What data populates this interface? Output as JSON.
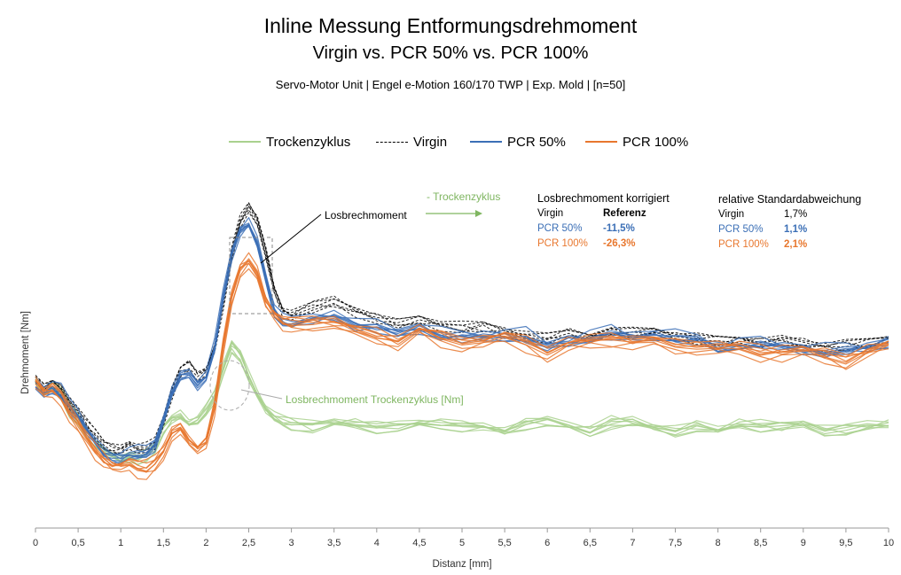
{
  "titles": {
    "title1": "Inline Messung Entformungsdrehmoment",
    "title2": "Virgin vs. PCR 50% vs. PCR 100%",
    "subtitle": "Servo-Motor Unit | Engel e-Motion 160/170 TWP | Exp. Mold | [n=50]"
  },
  "legend": [
    {
      "name": "Trockenzyklus",
      "color": "#a9d18e",
      "style": "solid"
    },
    {
      "name": "Virgin",
      "color": "#000000",
      "style": "dashed"
    },
    {
      "name": "PCR 50%",
      "color": "#3b6fb6",
      "style": "solid"
    },
    {
      "name": "PCR 100%",
      "color": "#e8772e",
      "style": "solid"
    }
  ],
  "annotations": {
    "losbrech": "Losbrechmoment",
    "losbrech_trocken": "Losbrechmoment Trockenzyklus [Nm]",
    "minus_trocken": "- Trockenzyklus"
  },
  "table1": {
    "header": "Losbrechmoment korrigiert",
    "rows": [
      {
        "label": "Virgin",
        "value": "Referenz"
      },
      {
        "label": "PCR 50%",
        "value": "-11,5%"
      },
      {
        "label": "PCR 100%",
        "value": "-26,3%"
      }
    ]
  },
  "table2": {
    "header": "relative Standardabweichung",
    "rows": [
      {
        "label": "Virgin",
        "value": "1,7%"
      },
      {
        "label": "PCR 50%",
        "value": "1,1%"
      },
      {
        "label": "PCR 100%",
        "value": "2,1%"
      }
    ]
  },
  "chart_data": {
    "type": "line",
    "xlabel": "Distanz [mm]",
    "ylabel": "Drehmoment [Nm]",
    "xlim": [
      0,
      10
    ],
    "ylim": [
      0,
      1
    ],
    "x_ticks": [
      "0",
      "0,5",
      "1",
      "1,5",
      "2",
      "2,5",
      "3",
      "3,5",
      "4",
      "4,5",
      "5",
      "5,5",
      "6",
      "6,5",
      "7",
      "7,5",
      "8",
      "8,5",
      "9",
      "9,5",
      "10"
    ],
    "x": [
      0,
      0.1,
      0.2,
      0.3,
      0.4,
      0.5,
      0.6,
      0.7,
      0.8,
      0.9,
      1.0,
      1.1,
      1.2,
      1.3,
      1.4,
      1.5,
      1.6,
      1.7,
      1.8,
      1.9,
      2.0,
      2.1,
      2.2,
      2.3,
      2.4,
      2.5,
      2.6,
      2.7,
      2.8,
      2.9,
      3.0,
      3.25,
      3.5,
      3.75,
      4.0,
      4.25,
      4.5,
      4.75,
      5.0,
      5.25,
      5.5,
      5.75,
      6.0,
      6.25,
      6.5,
      6.75,
      7.0,
      7.25,
      7.5,
      7.75,
      8.0,
      8.25,
      8.5,
      8.75,
      9.0,
      9.25,
      9.5,
      9.75,
      10.0
    ],
    "series": [
      {
        "name": "Trockenzyklus",
        "color": "#a9d18e",
        "values": [
          0.42,
          0.39,
          0.41,
          0.39,
          0.34,
          0.31,
          0.27,
          0.24,
          0.22,
          0.21,
          0.2,
          0.21,
          0.2,
          0.21,
          0.23,
          0.28,
          0.31,
          0.32,
          0.3,
          0.31,
          0.34,
          0.38,
          0.45,
          0.52,
          0.49,
          0.43,
          0.38,
          0.34,
          0.32,
          0.31,
          0.3,
          0.29,
          0.3,
          0.3,
          0.29,
          0.29,
          0.3,
          0.3,
          0.29,
          0.29,
          0.28,
          0.3,
          0.3,
          0.29,
          0.28,
          0.3,
          0.3,
          0.29,
          0.28,
          0.29,
          0.28,
          0.3,
          0.29,
          0.29,
          0.3,
          0.28,
          0.28,
          0.29,
          0.3
        ]
      },
      {
        "name": "Virgin",
        "color": "#000000",
        "values": [
          0.42,
          0.4,
          0.42,
          0.4,
          0.36,
          0.33,
          0.29,
          0.26,
          0.23,
          0.22,
          0.22,
          0.24,
          0.23,
          0.23,
          0.24,
          0.3,
          0.38,
          0.44,
          0.46,
          0.43,
          0.45,
          0.52,
          0.64,
          0.78,
          0.87,
          0.91,
          0.87,
          0.78,
          0.68,
          0.62,
          0.61,
          0.63,
          0.64,
          0.62,
          0.6,
          0.58,
          0.59,
          0.58,
          0.57,
          0.57,
          0.56,
          0.55,
          0.54,
          0.55,
          0.55,
          0.56,
          0.55,
          0.56,
          0.55,
          0.54,
          0.53,
          0.54,
          0.53,
          0.53,
          0.52,
          0.52,
          0.52,
          0.52,
          0.54
        ]
      },
      {
        "name": "PCR 50%",
        "color": "#3b6fb6",
        "values": [
          0.42,
          0.4,
          0.41,
          0.39,
          0.35,
          0.32,
          0.28,
          0.25,
          0.22,
          0.21,
          0.21,
          0.22,
          0.22,
          0.22,
          0.24,
          0.31,
          0.39,
          0.44,
          0.45,
          0.42,
          0.44,
          0.52,
          0.66,
          0.78,
          0.85,
          0.87,
          0.82,
          0.72,
          0.63,
          0.6,
          0.59,
          0.6,
          0.61,
          0.59,
          0.58,
          0.56,
          0.58,
          0.56,
          0.55,
          0.55,
          0.56,
          0.55,
          0.52,
          0.54,
          0.55,
          0.56,
          0.55,
          0.56,
          0.55,
          0.54,
          0.52,
          0.53,
          0.53,
          0.52,
          0.52,
          0.51,
          0.51,
          0.52,
          0.54
        ]
      },
      {
        "name": "PCR 100%",
        "color": "#e8772e",
        "values": [
          0.41,
          0.38,
          0.39,
          0.37,
          0.33,
          0.3,
          0.26,
          0.22,
          0.19,
          0.17,
          0.17,
          0.18,
          0.17,
          0.17,
          0.19,
          0.22,
          0.27,
          0.28,
          0.24,
          0.22,
          0.24,
          0.34,
          0.52,
          0.66,
          0.74,
          0.76,
          0.72,
          0.64,
          0.6,
          0.58,
          0.58,
          0.59,
          0.58,
          0.56,
          0.55,
          0.53,
          0.56,
          0.54,
          0.53,
          0.53,
          0.54,
          0.53,
          0.5,
          0.52,
          0.53,
          0.54,
          0.53,
          0.53,
          0.52,
          0.52,
          0.51,
          0.51,
          0.5,
          0.5,
          0.5,
          0.49,
          0.48,
          0.5,
          0.52
        ]
      }
    ]
  }
}
